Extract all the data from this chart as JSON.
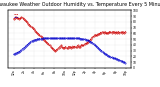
{
  "title": "Milwaukee Weather Outdoor Humidity vs. Temperature Every 5 Minutes",
  "title_fontsize": 3.5,
  "background_color": "#ffffff",
  "grid_color": "#d0d0d0",
  "humidity_color": "#cc0000",
  "temp_color": "#0000cc",
  "ylim_left": [
    0,
    100
  ],
  "ylim_right": [
    0,
    100
  ],
  "humidity_data": [
    85,
    86,
    87,
    88,
    89,
    88,
    87,
    87,
    87,
    86,
    85,
    85,
    86,
    87,
    88,
    88,
    87,
    86,
    85,
    84,
    83,
    82,
    81,
    80,
    79,
    78,
    77,
    76,
    75,
    74,
    73,
    72,
    71,
    70,
    69,
    68,
    67,
    66,
    65,
    64,
    63,
    62,
    61,
    60,
    59,
    58,
    57,
    56,
    55,
    54,
    53,
    52,
    51,
    50,
    49,
    48,
    47,
    46,
    45,
    44,
    43,
    42,
    41,
    40,
    39,
    38,
    37,
    36,
    35,
    34,
    33,
    32,
    31,
    30,
    29,
    30,
    31,
    32,
    33,
    34,
    35,
    36,
    37,
    38,
    39,
    38,
    37,
    36,
    35,
    34,
    35,
    36,
    37,
    36,
    35,
    34,
    35,
    36,
    37,
    38,
    37,
    36,
    35,
    36,
    37,
    38,
    37,
    36,
    37,
    38,
    37,
    36,
    37,
    38,
    39,
    38,
    37,
    36,
    37,
    38,
    39,
    40,
    39,
    38,
    39,
    40,
    41,
    42,
    43,
    42,
    43,
    44,
    45,
    46,
    47,
    48,
    49,
    50,
    51,
    52,
    53,
    54,
    55,
    56,
    57,
    58,
    57,
    56,
    57,
    58,
    59,
    60,
    59,
    60,
    61,
    62,
    61,
    62,
    63,
    62,
    61,
    62,
    63,
    62,
    61,
    60,
    61,
    62,
    61,
    62,
    63,
    62,
    63,
    62,
    61,
    62,
    63,
    62,
    63,
    62,
    61,
    62,
    63,
    62,
    61,
    62,
    63,
    62,
    61,
    62,
    63,
    62,
    61,
    62,
    63,
    62,
    61,
    62,
    63,
    64
  ],
  "temp_data": [
    8,
    9,
    10,
    10,
    11,
    11,
    12,
    12,
    13,
    14,
    14,
    15,
    16,
    17,
    18,
    19,
    20,
    21,
    22,
    23,
    24,
    25,
    26,
    27,
    28,
    29,
    30,
    31,
    32,
    33,
    34,
    35,
    36,
    36,
    37,
    37,
    38,
    38,
    38,
    39,
    39,
    39,
    40,
    40,
    40,
    40,
    41,
    41,
    41,
    41,
    41,
    42,
    42,
    42,
    42,
    42,
    42,
    42,
    42,
    42,
    42,
    42,
    42,
    42,
    42,
    42,
    42,
    42,
    42,
    42,
    42,
    42,
    42,
    42,
    42,
    42,
    42,
    42,
    42,
    42,
    42,
    42,
    42,
    42,
    42,
    42,
    42,
    42,
    42,
    42,
    42,
    42,
    42,
    42,
    42,
    42,
    42,
    42,
    42,
    42,
    42,
    42,
    42,
    42,
    42,
    42,
    42,
    42,
    42,
    42,
    42,
    42,
    42,
    42,
    42,
    42,
    42,
    42,
    41,
    41,
    41,
    41,
    41,
    40,
    40,
    40,
    40,
    39,
    39,
    39,
    38,
    38,
    38,
    37,
    37,
    36,
    35,
    35,
    34,
    33,
    32,
    31,
    30,
    29,
    28,
    27,
    26,
    25,
    24,
    23,
    22,
    21,
    20,
    19,
    18,
    17,
    16,
    15,
    14,
    13,
    12,
    11,
    10,
    9,
    8,
    7,
    6,
    5,
    5,
    4,
    4,
    3,
    3,
    2,
    2,
    1,
    1,
    1,
    0,
    0,
    0,
    -1,
    -1,
    -1,
    -2,
    -2,
    -3,
    -3,
    -4,
    -4,
    -5,
    -5,
    -6,
    -6,
    -7,
    -7,
    -8,
    -8,
    -9,
    -9
  ],
  "temp_display_min": -20,
  "temp_display_max": 100,
  "xtick_labels": [
    "12a",
    "2a",
    "4a",
    "6a",
    "8a",
    "10a",
    "12p",
    "2p",
    "4p",
    "6p",
    "8p",
    "10p"
  ],
  "ytick_labels_right": [
    "0",
    "10",
    "20",
    "30",
    "40",
    "50",
    "60",
    "70",
    "80",
    "90",
    "100"
  ]
}
